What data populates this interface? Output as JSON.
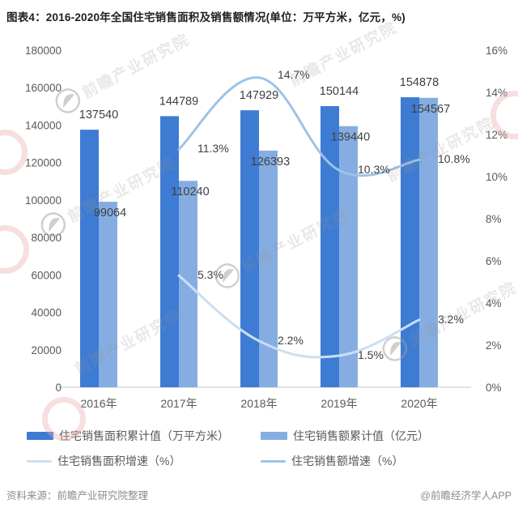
{
  "title": "图表4：2016-2020年全国住宅销售面积及销售额情况(单位：万平方米，亿元，%)",
  "watermark": {
    "text": "前瞻产业研究院",
    "logo_name": "qianzhan-logo"
  },
  "footer": {
    "source": "资料来源：前瞻产业研究院整理",
    "handle": "@前瞻经济学人APP"
  },
  "chart_data": {
    "type": "bar",
    "subtype": "grouped bars with two smoothed growth-rate lines",
    "categories": [
      "2016年",
      "2017年",
      "2018年",
      "2019年",
      "2020年"
    ],
    "left_axis": {
      "min": 0,
      "max": 180000,
      "step": 20000,
      "ticks": [
        0,
        20000,
        40000,
        60000,
        80000,
        100000,
        120000,
        140000,
        160000,
        180000
      ]
    },
    "right_axis": {
      "min": 0,
      "max": 16,
      "step": 2,
      "ticks": [
        "0%",
        "2%",
        "4%",
        "6%",
        "8%",
        "10%",
        "12%",
        "14%",
        "16%"
      ]
    },
    "bar_series": [
      {
        "name": "住宅销售面积累计值（万平方米）",
        "color": "#3E7BD3",
        "values": [
          137540,
          144789,
          147929,
          150144,
          154878
        ],
        "labels": [
          "137540",
          "144789",
          "147929",
          "150144",
          "154878"
        ]
      },
      {
        "name": "住宅销售额累计值（亿元）",
        "color": "#85ADE2",
        "values": [
          99064,
          110240,
          126393,
          139440,
          154567
        ],
        "labels": [
          "99064",
          "110240",
          "126393",
          "139440",
          "154567"
        ]
      }
    ],
    "line_series": [
      {
        "name": "住宅销售面积增速（%）",
        "color": "#CBDFF2",
        "values": [
          null,
          5.3,
          2.2,
          1.5,
          3.2
        ],
        "labels": [
          null,
          "5.3%",
          "2.2%",
          "1.5%",
          "3.2%"
        ]
      },
      {
        "name": "住宅销售额增速（%）",
        "color": "#9DC3E6",
        "values": [
          null,
          11.3,
          14.7,
          10.3,
          10.8
        ],
        "labels": [
          null,
          "11.3%",
          "14.7%",
          "10.3%",
          "10.8%"
        ]
      }
    ],
    "legend_position": "bottom",
    "grid": false,
    "text_colors": {
      "value_label": "#3F3F3F",
      "axis": "#595959"
    }
  }
}
